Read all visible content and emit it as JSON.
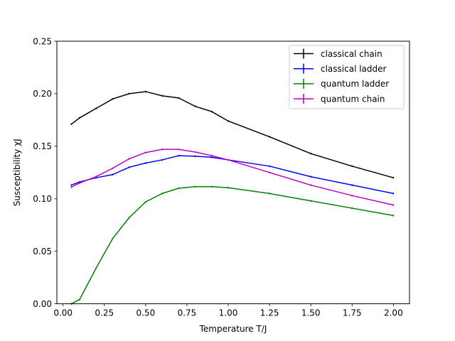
{
  "chart_data": {
    "type": "line",
    "title": "",
    "xlabel": "Temperature T/J",
    "ylabel": "Susceptibility χJ",
    "xlim": [
      -0.0375,
      2.0975
    ],
    "ylim": [
      0.0,
      0.25
    ],
    "xticks": [
      "0.00",
      "0.25",
      "0.50",
      "0.75",
      "1.00",
      "1.25",
      "1.50",
      "1.75",
      "2.00"
    ],
    "yticks": [
      "0.00",
      "0.05",
      "0.10",
      "0.15",
      "0.20",
      "0.25"
    ],
    "grid": false,
    "legend_position": "top-right",
    "series": [
      {
        "name": "classical chain",
        "color": "#000000",
        "x": [
          0.05,
          0.1,
          0.2,
          0.3,
          0.4,
          0.5,
          0.6,
          0.7,
          0.8,
          0.9,
          1.0,
          1.25,
          1.5,
          1.75,
          2.0
        ],
        "y": [
          0.171,
          0.177,
          0.186,
          0.195,
          0.2,
          0.202,
          0.198,
          0.196,
          0.188,
          0.183,
          0.174,
          0.159,
          0.143,
          0.131,
          0.12
        ]
      },
      {
        "name": "classical ladder",
        "color": "#0000ff",
        "x": [
          0.05,
          0.1,
          0.2,
          0.3,
          0.4,
          0.5,
          0.6,
          0.7,
          0.8,
          0.9,
          1.0,
          1.25,
          1.5,
          1.75,
          2.0
        ],
        "y": [
          0.113,
          0.116,
          0.12,
          0.123,
          0.13,
          0.134,
          0.137,
          0.141,
          0.1405,
          0.1395,
          0.137,
          0.131,
          0.121,
          0.113,
          0.105
        ]
      },
      {
        "name": "quantum ladder",
        "color": "#008000",
        "x": [
          0.05,
          0.1,
          0.2,
          0.3,
          0.4,
          0.5,
          0.6,
          0.7,
          0.8,
          0.9,
          1.0,
          1.25,
          1.5,
          1.75,
          2.0
        ],
        "y": [
          0.0,
          0.004,
          0.034,
          0.062,
          0.082,
          0.097,
          0.105,
          0.11,
          0.1115,
          0.1115,
          0.1105,
          0.105,
          0.098,
          0.091,
          0.084
        ]
      },
      {
        "name": "quantum chain",
        "color": "#bf00bf",
        "x": [
          0.05,
          0.1,
          0.2,
          0.3,
          0.4,
          0.5,
          0.6,
          0.7,
          0.8,
          0.9,
          1.0,
          1.25,
          1.5,
          1.75,
          2.0
        ],
        "y": [
          0.111,
          0.115,
          0.121,
          0.129,
          0.138,
          0.144,
          0.147,
          0.147,
          0.1445,
          0.141,
          0.137,
          0.125,
          0.113,
          0.103,
          0.094
        ]
      }
    ]
  }
}
